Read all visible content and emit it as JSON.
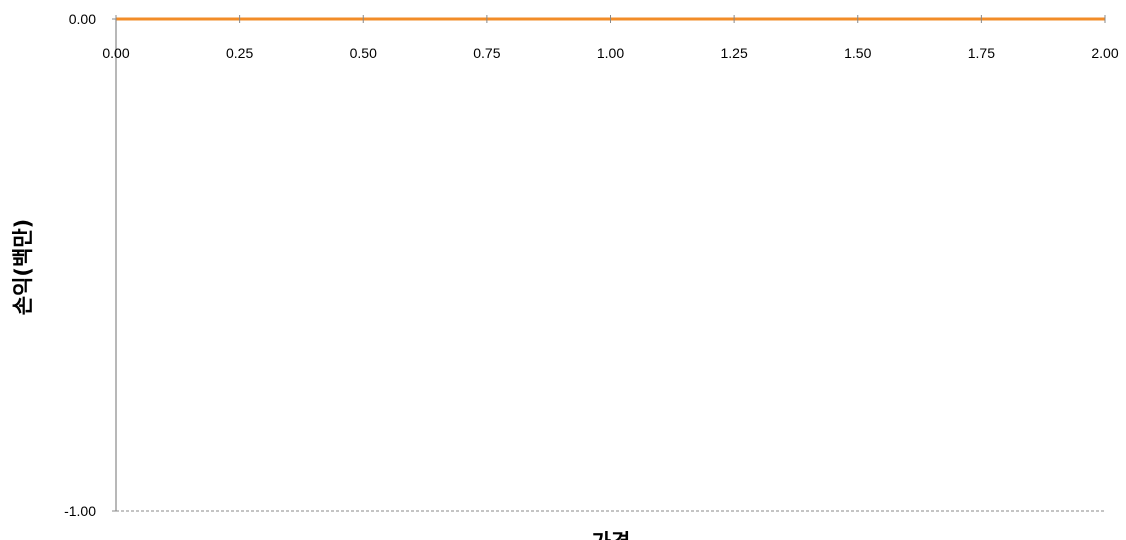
{
  "chart_data": {
    "type": "line",
    "title": "",
    "xlabel": "가격",
    "ylabel": "손익(백만)",
    "xlim": [
      0,
      2
    ],
    "ylim": [
      -1,
      0
    ],
    "x_ticks": [
      "0.00",
      "0.25",
      "0.50",
      "0.75",
      "1.00",
      "1.25",
      "1.50",
      "1.75",
      "2.00"
    ],
    "y_ticks": [
      "0.00",
      "-1.00"
    ],
    "grid": false,
    "legend": "none",
    "series": [
      {
        "color": "#F28C28",
        "x": [
          0,
          2
        ],
        "y": [
          0,
          0
        ]
      }
    ],
    "reference_lines": [
      {
        "axis": "y",
        "value": -1,
        "style": "dashed",
        "color": "#888888"
      }
    ]
  }
}
